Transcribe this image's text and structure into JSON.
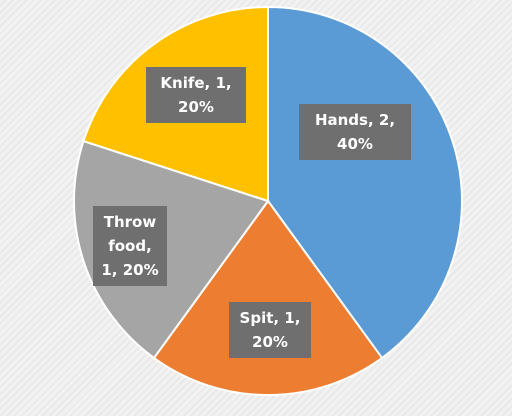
{
  "chart_data": {
    "type": "pie",
    "values": [
      2,
      1,
      1,
      1
    ],
    "value_labels": [
      "Hands, 2, 40%",
      "Spit, 1, 20%",
      "Throw food, 1, 20%",
      "Knife, 1, 20%"
    ],
    "colors": [
      "#5b9bd5",
      "#ed7d31",
      "#a5a5a5",
      "#ffc000"
    ]
  }
}
